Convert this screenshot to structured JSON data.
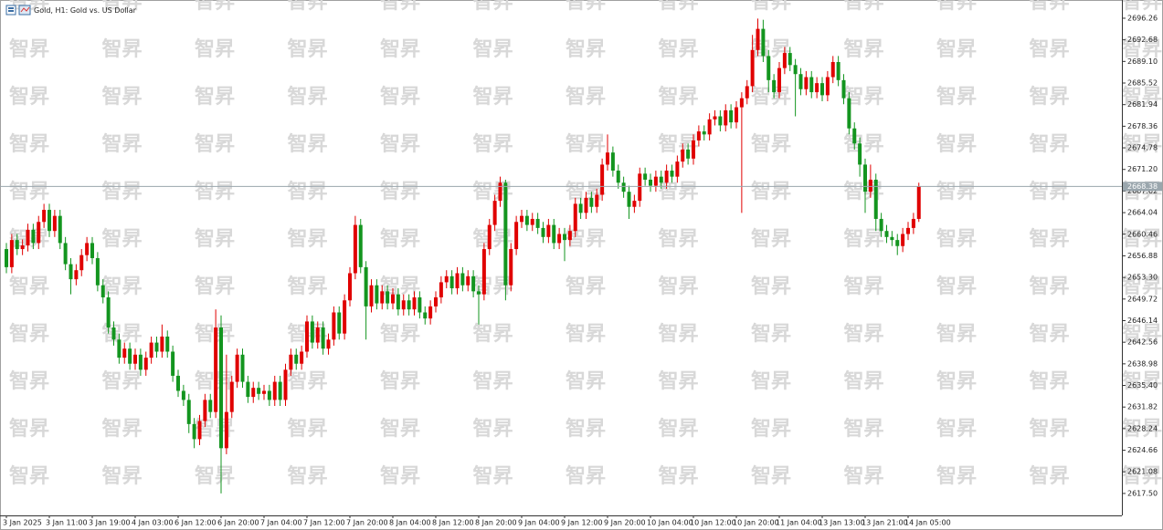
{
  "watermark": "智昇",
  "chart_data": {
    "type": "candlestick",
    "title": "Gold, H1:  Gold vs. US Dollar",
    "up_color": "#e00000",
    "down_color": "#13951f",
    "grid": false,
    "current_price": 2668.38,
    "current_price_color": "#9aa6ad",
    "ylim": [
      2613.86,
      2699.28
    ],
    "yticks": [
      2696.26,
      2692.68,
      {
        "value": 2689.1,
        "label": "2689.10"
      },
      2685.52,
      2681.94,
      2678.36,
      2674.78,
      {
        "value": 2671.2,
        "label": "2671.20"
      },
      2667.62,
      2664.04,
      2660.46,
      2656.88,
      {
        "value": 2653.3,
        "label": "2653.30"
      },
      2649.72,
      2646.14,
      2642.56,
      2638.98,
      {
        "value": 2635.4,
        "label": "2635.40"
      },
      2631.82,
      2628.24,
      2624.66,
      2621.08,
      {
        "value": 2617.5,
        "label": "2617.50"
      }
    ],
    "categories": [
      "3 Jan 2025",
      null,
      null,
      null,
      null,
      null,
      null,
      null,
      "3 Jan 11:00",
      null,
      null,
      null,
      null,
      null,
      null,
      null,
      "3 Jan 19:00",
      null,
      null,
      null,
      null,
      null,
      null,
      null,
      "4 Jan 03:00",
      null,
      null,
      null,
      null,
      null,
      null,
      null,
      "6 Jan 12:00",
      null,
      null,
      null,
      null,
      null,
      null,
      null,
      "6 Jan 20:00",
      null,
      null,
      null,
      null,
      null,
      null,
      null,
      "7 Jan 04:00",
      null,
      null,
      null,
      null,
      null,
      null,
      null,
      "7 Jan 12:00",
      null,
      null,
      null,
      null,
      null,
      null,
      null,
      "7 Jan 20:00",
      null,
      null,
      null,
      null,
      null,
      null,
      null,
      "8 Jan 04:00",
      null,
      null,
      null,
      null,
      null,
      null,
      null,
      "8 Jan 12:00",
      null,
      null,
      null,
      null,
      null,
      null,
      null,
      "8 Jan 20:00",
      null,
      null,
      null,
      null,
      null,
      null,
      null,
      "9 Jan 04:00",
      null,
      null,
      null,
      null,
      null,
      null,
      null,
      "9 Jan 12:00",
      null,
      null,
      null,
      null,
      null,
      null,
      null,
      "9 Jan 20:00",
      null,
      null,
      null,
      null,
      null,
      null,
      null,
      "10 Jan 04:00",
      null,
      null,
      null,
      null,
      null,
      null,
      null,
      "10 Jan 12:00",
      null,
      null,
      null,
      null,
      null,
      null,
      null,
      "10 Jan 20:00",
      null,
      null,
      null,
      null,
      null,
      null,
      null,
      "11 Jan 04:00",
      null,
      null,
      null,
      null,
      null,
      null,
      null,
      "13 Jan 13:00",
      null,
      null,
      null,
      null,
      null,
      null,
      null,
      "13 Jan 21:00",
      null,
      null,
      null,
      null,
      null,
      null,
      null,
      "14 Jan 05:00",
      null,
      null
    ],
    "open": [
      2658,
      2655,
      2659.5,
      2658,
      2658.6,
      2661.2,
      2659,
      2662.5,
      2664.5,
      2661,
      2663.5,
      2659,
      2655.5,
      2653,
      2654.5,
      2657,
      2659,
      2656.5,
      2652,
      2650,
      2645,
      2643,
      2640,
      2641.5,
      2639,
      2640.5,
      2638,
      2640,
      2642.5,
      2641,
      2643.5,
      2641,
      2637,
      2634.5,
      2633,
      2629,
      2626.5,
      2629.5,
      2633,
      2631,
      2645,
      2625,
      2631,
      2636,
      2640.5,
      2636,
      2633.5,
      2635,
      2634,
      2634.5,
      2633,
      2636,
      2633,
      2638,
      2640.5,
      2639,
      2641,
      2646,
      2642.5,
      2645,
      2641.5,
      2643,
      2647.5,
      2644,
      2649.5,
      2654,
      2662,
      2655,
      2648.5,
      2652,
      2649,
      2651,
      2649,
      2650.5,
      2648,
      2649.5,
      2648,
      2650,
      2647.5,
      2646.5,
      2648.5,
      2650,
      2652.5,
      2653.5,
      2651.5,
      2654,
      2652,
      2653.5,
      2651,
      2650.5,
      2658,
      2662,
      2666,
      2669,
      2652,
      2658,
      2662.5,
      2663.5,
      2662,
      2663,
      2661.5,
      2660,
      2662,
      2659,
      2660.5,
      2659.5,
      2661,
      2665.5,
      2664,
      2666.5,
      2665,
      2667,
      2672,
      2674,
      2671,
      2669,
      2667.5,
      2665,
      2666,
      2670.5,
      2669.5,
      2668.5,
      2670,
      2669,
      2671,
      2670,
      2672.5,
      2674.5,
      2673,
      2676,
      2677.5,
      2677,
      2679.5,
      2680,
      2678.5,
      2681,
      2679,
      2681.5,
      2683,
      2685,
      2691,
      2694.5,
      2690,
      2686,
      2684,
      2688,
      2690.5,
      2688.5,
      2687,
      2684.5,
      2686.5,
      2684,
      2685.5,
      2683.5,
      2686.5,
      2689,
      2686,
      2683,
      2678,
      2675.5,
      2672,
      2667.5,
      2669.5,
      2663,
      2661,
      2660,
      2659.5,
      2658.5,
      2660.5,
      2661.5,
      2663
    ],
    "high": [
      2659,
      2660.5,
      2660.5,
      2659.6,
      2662.2,
      2662.2,
      2663.5,
      2665.5,
      2665.5,
      2664.5,
      2664.5,
      2660,
      2656.5,
      2655.5,
      2658,
      2660,
      2660,
      2657.5,
      2653,
      2651,
      2646,
      2644,
      2642.5,
      2642.5,
      2641.5,
      2641.5,
      2641,
      2643.5,
      2643.5,
      2645.5,
      2644.5,
      2642,
      2638,
      2635.5,
      2634,
      2630,
      2630.5,
      2634,
      2634,
      2648,
      2647,
      2640.5,
      2637,
      2641.5,
      2641.5,
      2637,
      2636,
      2636,
      2635.5,
      2635.5,
      2637,
      2637,
      2639,
      2641.5,
      2641.5,
      2642,
      2647,
      2647,
      2646,
      2646,
      2644,
      2648.5,
      2648.5,
      2650.5,
      2655,
      2663.5,
      2663,
      2656,
      2653,
      2653,
      2652,
      2652,
      2651.5,
      2651.5,
      2650.5,
      2650.5,
      2651,
      2651,
      2648.5,
      2649.5,
      2651,
      2653.5,
      2654.5,
      2654.5,
      2655,
      2655,
      2654.5,
      2654.5,
      2652,
      2659,
      2663,
      2667,
      2670,
      2669.5,
      2659,
      2663.5,
      2664.5,
      2664.5,
      2664,
      2664,
      2662.5,
      2663,
      2663,
      2661.5,
      2661.5,
      2662,
      2666.5,
      2666.5,
      2667.5,
      2667.5,
      2668,
      2673,
      2677,
      2675,
      2672,
      2670,
      2668.5,
      2667,
      2671.5,
      2671.5,
      2670.5,
      2671,
      2671,
      2672,
      2672,
      2673.5,
      2675.5,
      2675.5,
      2677,
      2678.5,
      2678.5,
      2680.5,
      2681,
      2681,
      2682,
      2682,
      2682.5,
      2684,
      2686,
      2693.5,
      2696.2,
      2696,
      2691,
      2687,
      2689,
      2691.5,
      2691.5,
      2689.5,
      2688,
      2687.5,
      2687.5,
      2686.5,
      2686.5,
      2687.5,
      2690,
      2690,
      2687,
      2684,
      2679,
      2676.5,
      2673,
      2672,
      2670.5,
      2664,
      2662,
      2661,
      2660.5,
      2661.5,
      2662.5,
      2664,
      2669
    ],
    "low": [
      2654,
      2654,
      2657,
      2657,
      2657.6,
      2658,
      2658,
      2661.5,
      2660,
      2660,
      2658,
      2654.5,
      2650.5,
      2652,
      2653.5,
      2656,
      2655.5,
      2651,
      2649,
      2644,
      2642,
      2639,
      2639,
      2638,
      2638,
      2637,
      2637,
      2639,
      2640,
      2640,
      2640,
      2636,
      2633.5,
      2632,
      2627.5,
      2625,
      2625.5,
      2628.5,
      2630,
      2630,
      2617.5,
      2624,
      2630,
      2635,
      2635,
      2632.5,
      2632.5,
      2633,
      2633,
      2632,
      2632,
      2632,
      2632,
      2637,
      2638,
      2638,
      2640,
      2641.5,
      2641.5,
      2640.5,
      2640.5,
      2642,
      2643,
      2643,
      2648.5,
      2653,
      2654,
      2643,
      2647.5,
      2648,
      2648,
      2648,
      2648,
      2647,
      2647,
      2647,
      2647,
      2646.5,
      2645.5,
      2645.5,
      2647.5,
      2649,
      2651.5,
      2650.5,
      2650.5,
      2651,
      2651,
      2650,
      2645.5,
      2649.5,
      2657,
      2661,
      2665,
      2649.5,
      2651,
      2657,
      2661.5,
      2661,
      2661,
      2660.5,
      2659,
      2659,
      2658,
      2658,
      2656,
      2658.5,
      2660,
      2663,
      2663,
      2664,
      2664,
      2666,
      2671,
      2670,
      2668,
      2666.5,
      2663,
      2664,
      2665,
      2668.5,
      2667.5,
      2667.5,
      2668,
      2668,
      2669,
      2669,
      2671.5,
      2672,
      2672,
      2675,
      2676,
      2676,
      2678.5,
      2677.5,
      2677.5,
      2678,
      2678,
      2664,
      2682,
      2684,
      2690,
      2689,
      2684,
      2683,
      2683,
      2687,
      2687.5,
      2680,
      2683.5,
      2683.5,
      2683,
      2683,
      2682.5,
      2682.5,
      2685.5,
      2685,
      2682,
      2677,
      2674.5,
      2670,
      2664,
      2666.5,
      2661,
      2660,
      2659,
      2658.5,
      2657,
      2657.5,
      2659.5,
      2660.5,
      2662.5
    ],
    "close": [
      2655,
      2659.5,
      2658,
      2658.6,
      2661.2,
      2659,
      2662.5,
      2664.5,
      2661,
      2663.5,
      2659,
      2655.5,
      2653,
      2654.5,
      2657,
      2659,
      2656.5,
      2652,
      2650,
      2645,
      2643,
      2640,
      2641.5,
      2639,
      2640.5,
      2638,
      2640,
      2642.5,
      2641,
      2643.5,
      2641,
      2637,
      2634.5,
      2633,
      2629,
      2626.5,
      2629.5,
      2633,
      2631,
      2645,
      2625,
      2631,
      2636,
      2640.5,
      2636,
      2633.5,
      2635,
      2634,
      2634.5,
      2633,
      2636,
      2633,
      2638,
      2640.5,
      2639,
      2641,
      2646,
      2642.5,
      2645,
      2641.5,
      2643,
      2647.5,
      2644,
      2649.5,
      2654,
      2662,
      2655,
      2648.5,
      2652,
      2649,
      2651,
      2649,
      2650.5,
      2648,
      2649.5,
      2648,
      2650,
      2647.5,
      2646.5,
      2648.5,
      2650,
      2652.5,
      2653.5,
      2651.5,
      2654,
      2652,
      2653.5,
      2651,
      2650.5,
      2658,
      2662,
      2666,
      2669,
      2652,
      2658,
      2662.5,
      2663.5,
      2662,
      2663,
      2661.5,
      2660,
      2662,
      2659,
      2660.5,
      2659.5,
      2661,
      2665.5,
      2664,
      2666.5,
      2665,
      2667,
      2672,
      2674,
      2671,
      2669,
      2667.5,
      2665,
      2666,
      2670.5,
      2669.5,
      2668.5,
      2670,
      2669,
      2671,
      2670,
      2672.5,
      2674.5,
      2673,
      2676,
      2677.5,
      2677,
      2679.5,
      2680,
      2678.5,
      2681,
      2679,
      2681.5,
      2683,
      2685,
      2691,
      2694.5,
      2690,
      2686,
      2684,
      2688,
      2690.5,
      2688.5,
      2687,
      2684.5,
      2686.5,
      2684,
      2685.5,
      2683.5,
      2686.5,
      2689,
      2686,
      2683,
      2678,
      2675.5,
      2672,
      2667.5,
      2669.5,
      2663,
      2661,
      2660,
      2659.5,
      2658.5,
      2660.5,
      2661.5,
      2663,
      2668.38
    ]
  }
}
